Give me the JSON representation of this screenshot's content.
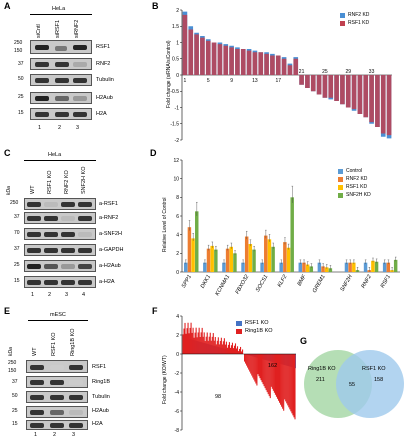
{
  "panels": {
    "A": "A",
    "B": "B",
    "C": "C",
    "D": "D",
    "E": "E",
    "F": "F",
    "G": "G"
  },
  "A": {
    "cell": "HeLa",
    "lanes": [
      "siCntl",
      "siRSF1",
      "siRNF2"
    ],
    "lane_numbers": [
      "1",
      "2",
      "3"
    ],
    "rows": [
      "RSF1",
      "RNF2",
      "Tubulin",
      "H2Aub",
      "H2A"
    ],
    "mw": [
      "250",
      "150",
      "37",
      "50",
      "25",
      "15"
    ]
  },
  "B": {
    "ylabel": "Fold change (siRNA/siControl)",
    "yticks": [
      "2",
      "1.5",
      "1",
      "0.5",
      "0",
      "-0.5",
      "-1",
      "-1.5",
      "-2"
    ],
    "xticks_top": [
      "1",
      "5",
      "9",
      "13",
      "17"
    ],
    "xticks_bottom": [
      "21",
      "25",
      "29",
      "33"
    ],
    "legend": [
      "RNF2 KD",
      "RSF1 KD"
    ],
    "colors": {
      "RNF2 KD": "#4a8fd4",
      "RSF1 KD": "#c0404f"
    }
  },
  "C": {
    "cell": "HeLa",
    "lanes": [
      "WT",
      "RSF1 KO",
      "RNF2 KO",
      "SNF2H KO"
    ],
    "lane_numbers": [
      "1",
      "2",
      "3",
      "4"
    ],
    "rows": [
      "a-RSF1",
      "a-RNF2",
      "a-SNF2H",
      "a-GAPDH",
      "a-H2Aub",
      "a-H2A"
    ],
    "mw": [
      "250",
      "37",
      "70",
      "37",
      "25",
      "15"
    ],
    "kda": "kDa"
  },
  "D": {
    "ylabel": "Relative Level of Control",
    "yticks": [
      "12",
      "10",
      "8",
      "6",
      "4",
      "2",
      "0"
    ],
    "legend": [
      "Control",
      "RNF2 KD",
      "RSF1 KD",
      "SNF2H KD"
    ]
  },
  "E": {
    "cell": "mESC",
    "lanes": [
      "WT",
      "RSF1 KO",
      "Ring1B KO"
    ],
    "lane_numbers": [
      "1",
      "2",
      "3"
    ],
    "rows": [
      "RSF1",
      "Ring1B",
      "Tubulin",
      "H2Aub",
      "H2A"
    ],
    "mw": [
      "250",
      "150",
      "37",
      "50",
      "25",
      "15"
    ],
    "kda": "kDa"
  },
  "F": {
    "ylabel": "Fold change (KO/WT)",
    "yticks": [
      "4",
      "2",
      "0",
      "-2",
      "-4",
      "-6",
      "-8"
    ],
    "legend": [
      "RSF1 KO",
      "Ring1B KO"
    ],
    "annotations": [
      "162",
      "98"
    ]
  },
  "G": {
    "left_label": "Ring1B KO",
    "right_label": "RSF1 KO",
    "left_only": "211",
    "overlap": "55",
    "right_only": "158"
  },
  "chart_data": [
    {
      "type": "bar",
      "panel": "B",
      "ylim": [
        -2,
        2
      ],
      "series": [
        {
          "name": "RNF2 KD",
          "values": [
            1.95,
            1.5,
            1.3,
            1.2,
            1.1,
            1.0,
            1.0,
            0.95,
            0.9,
            0.85,
            0.8,
            0.8,
            0.75,
            0.7,
            0.7,
            0.65,
            0.6,
            0.55,
            0.35,
            0.55,
            -0.3,
            -0.4,
            -0.5,
            -0.6,
            -0.7,
            -0.75,
            -0.8,
            -0.9,
            -1.0,
            -1.1,
            -1.2,
            -1.3,
            -1.5,
            -1.6,
            -1.9,
            -1.95
          ]
        },
        {
          "name": "RSF1 KD",
          "values": [
            1.85,
            1.4,
            1.25,
            1.15,
            1.05,
            1.0,
            0.95,
            0.9,
            0.85,
            0.8,
            0.8,
            0.75,
            0.7,
            0.7,
            0.65,
            0.6,
            0.6,
            0.5,
            0.3,
            0.5,
            -0.3,
            -0.4,
            -0.5,
            -0.6,
            -0.7,
            -0.7,
            -0.8,
            -0.9,
            -1.0,
            -1.05,
            -1.2,
            -1.3,
            -1.45,
            -1.6,
            -1.8,
            -1.85
          ]
        }
      ]
    },
    {
      "type": "bar",
      "panel": "D",
      "categories": [
        "SPP1",
        "DKK1",
        "KCNMA1",
        "FBXO32",
        "SOCS1",
        "KLF2",
        "BMF",
        "GREM1",
        "SNF2H",
        "RNF2",
        "RSF1"
      ],
      "ylim": [
        0,
        12
      ],
      "series": [
        {
          "name": "Control",
          "values": [
            1,
            1,
            1,
            1,
            1,
            1,
            1,
            1,
            1,
            1,
            1
          ]
        },
        {
          "name": "RNF2 KD",
          "values": [
            4.8,
            2.5,
            2.5,
            3.8,
            3.9,
            3.2,
            1.0,
            0.6,
            1.0,
            0.2,
            1.0
          ]
        },
        {
          "name": "RSF1 KD",
          "values": [
            3.6,
            2.8,
            2.7,
            3.0,
            3.5,
            2.6,
            0.8,
            0.5,
            1.0,
            1.2,
            0.2
          ]
        },
        {
          "name": "SNF2H KD",
          "values": [
            6.5,
            2.4,
            2.0,
            2.4,
            2.7,
            8.0,
            0.6,
            0.4,
            0.2,
            1.1,
            1.3
          ]
        }
      ]
    },
    {
      "type": "bar",
      "panel": "F",
      "ylim": [
        -8,
        4
      ],
      "series": [
        {
          "name": "RSF1 KO",
          "values": [
            1.8,
            -1.5
          ]
        },
        {
          "name": "Ring1B KO",
          "values": [
            3.5,
            -6.5
          ]
        }
      ]
    }
  ]
}
